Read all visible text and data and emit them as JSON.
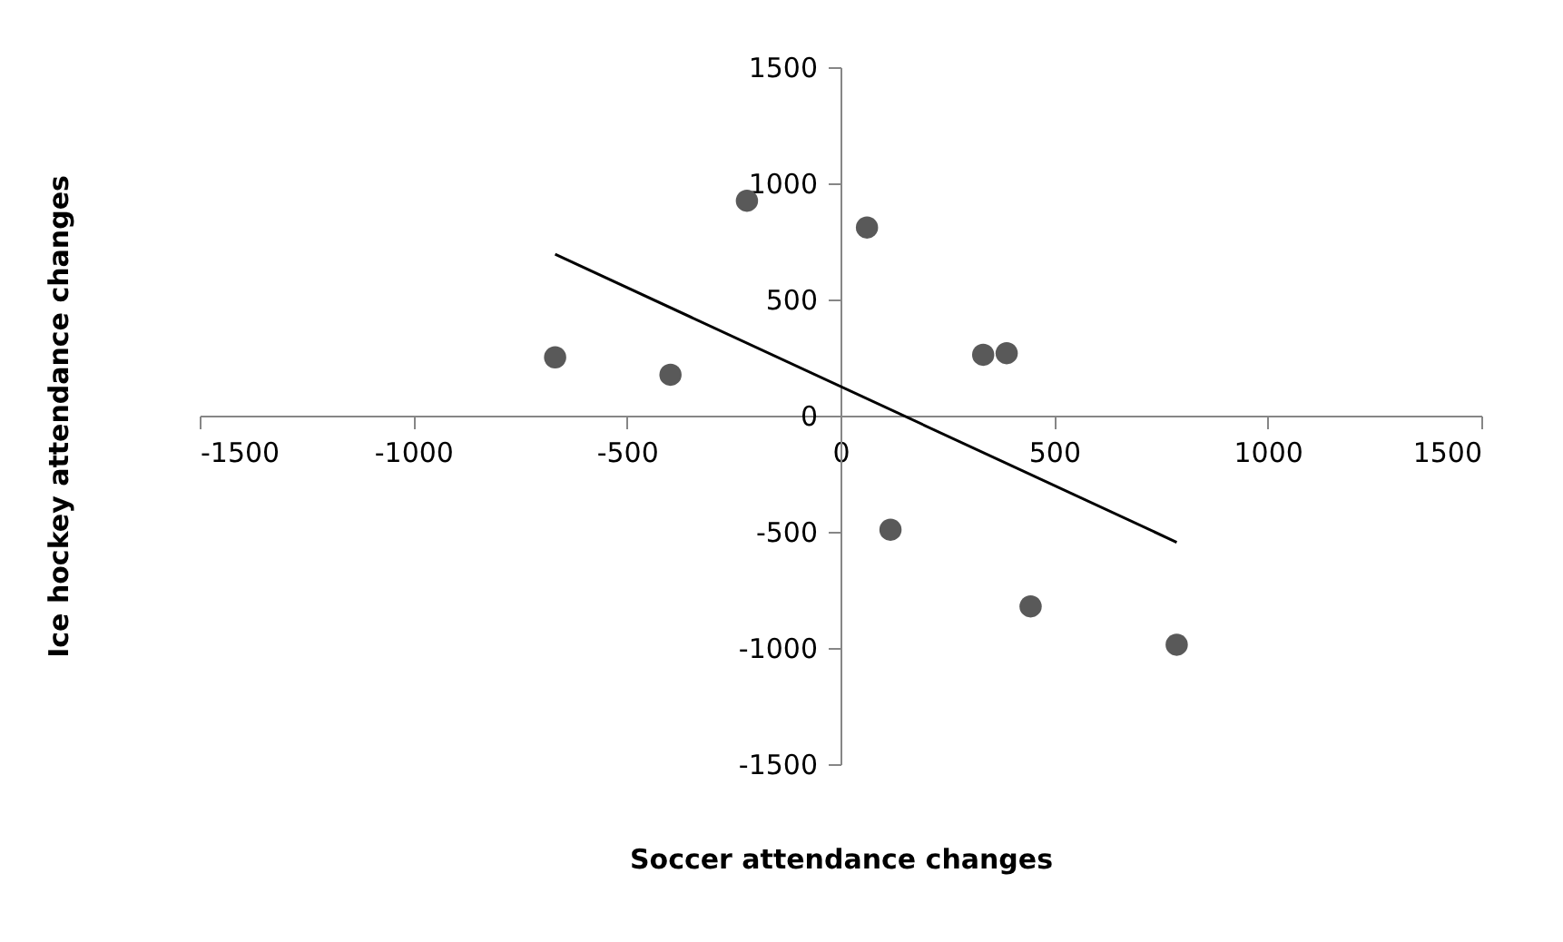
{
  "chart_data": {
    "type": "scatter",
    "xlabel": "Soccer attendance changes",
    "ylabel": "Ice hockey attendance changes",
    "xlim": [
      -1500,
      1500
    ],
    "xticks": [
      -1500,
      -1000,
      -500,
      0,
      500,
      1000,
      1500
    ],
    "ylim": [
      -1500,
      1500
    ],
    "yticks": [
      -1500,
      -1000,
      -500,
      0,
      500,
      1000,
      1500
    ],
    "grid": false,
    "series": [
      {
        "color": "#595959",
        "marker": "circle",
        "x": [
          -668,
          -398,
          -219,
          62,
          334,
          389,
          117,
          445,
          787
        ],
        "values": [
          251,
          176,
          925,
          810,
          262,
          269,
          -491,
          -821,
          -986
        ]
      },
      {
        "type": "line",
        "color": "#000000",
        "line_style": "solid",
        "x": [
          -668,
          787
        ],
        "values": [
          695,
          -545
        ]
      }
    ]
  }
}
